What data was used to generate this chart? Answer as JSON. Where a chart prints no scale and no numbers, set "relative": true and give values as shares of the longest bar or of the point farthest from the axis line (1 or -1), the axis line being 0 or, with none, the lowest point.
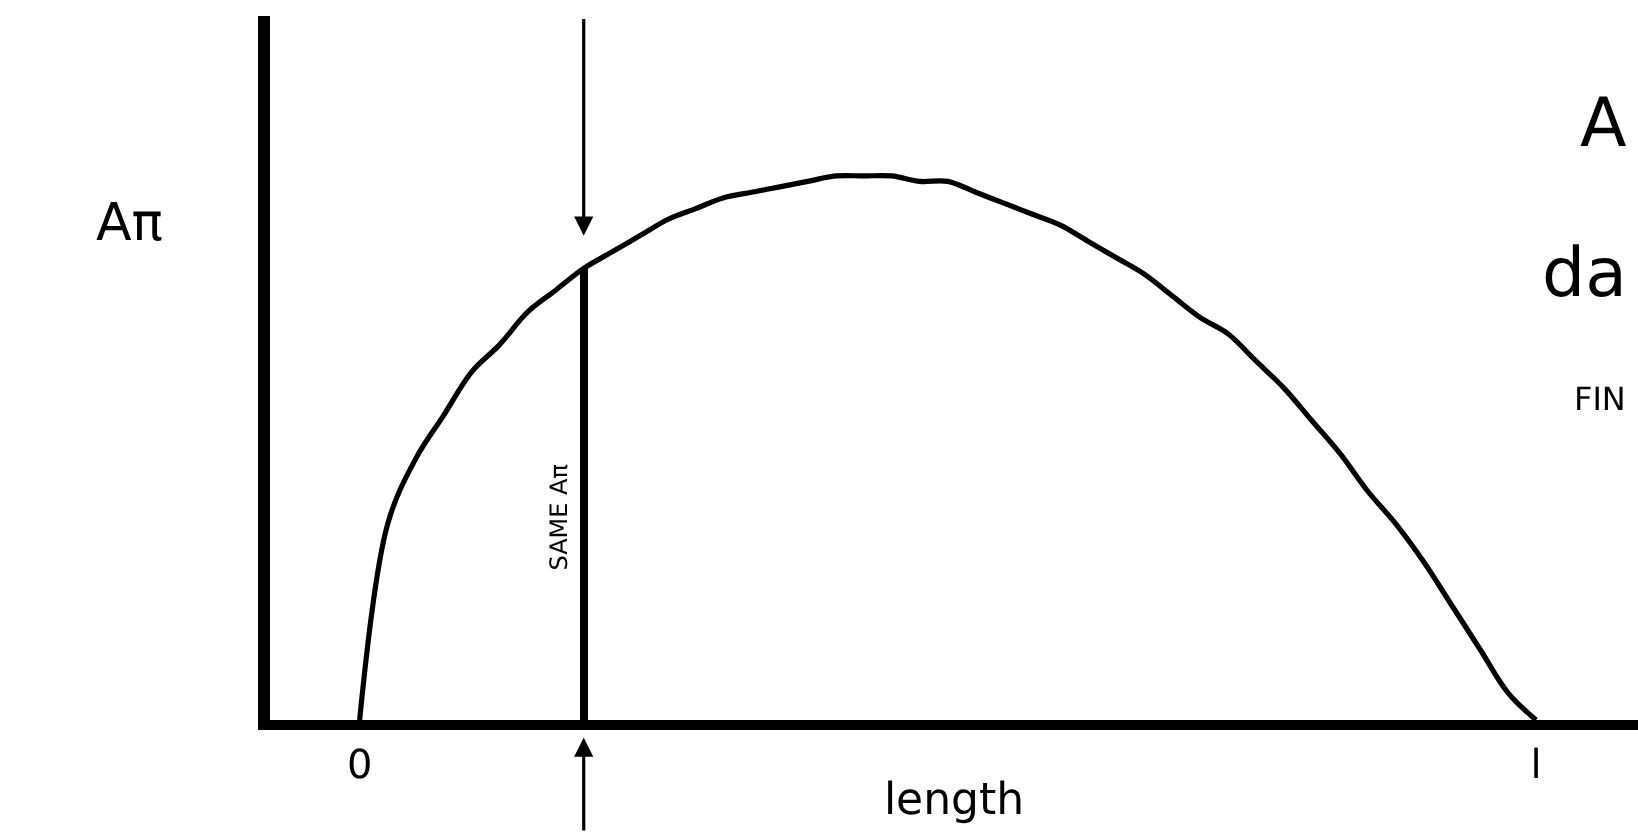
{
  "chart_data": {
    "type": "line",
    "xlabel": "length",
    "ylabel": "Aπ",
    "relative": true,
    "grid": false,
    "categories": [
      "0",
      null,
      null,
      null,
      null,
      null,
      null,
      null,
      null,
      null,
      null,
      null,
      null,
      null,
      null,
      null,
      null,
      null,
      null,
      null,
      null,
      null,
      null,
      null,
      null,
      null,
      null,
      null,
      null,
      null,
      null,
      null,
      null,
      null,
      null,
      null,
      null,
      null,
      null,
      null,
      null,
      null,
      "l"
    ],
    "series": [
      {
        "color": "#000000",
        "values": [
          0,
          0.36,
          0.48,
          0.56,
          0.64,
          0.69,
          0.75,
          0.79,
          0.83,
          0.86,
          0.89,
          0.92,
          0.94,
          0.96,
          0.97,
          0.98,
          0.99,
          1,
          1,
          1,
          0.99,
          0.99,
          0.97,
          0.95,
          0.93,
          0.91,
          0.88,
          0.85,
          0.82,
          0.78,
          0.74,
          0.71,
          0.66,
          0.61,
          0.55,
          0.49,
          0.42,
          0.36,
          0.29,
          0.21,
          0.13,
          0.05,
          0
        ]
      },
      {
        "type": "bar",
        "name": "SAME Aπ",
        "color": "#000000",
        "values": [
          null,
          null,
          null,
          null,
          null,
          null,
          null,
          null,
          0.83,
          null,
          null,
          null,
          null,
          null,
          null,
          null,
          null,
          null,
          null,
          null,
          null,
          null,
          null,
          null,
          null,
          null,
          null,
          null,
          null,
          null,
          null,
          null,
          null,
          null,
          null,
          null,
          null,
          null,
          null,
          null,
          null,
          null,
          null
        ]
      }
    ],
    "annotations": [
      "A",
      "da",
      "FIN"
    ]
  }
}
